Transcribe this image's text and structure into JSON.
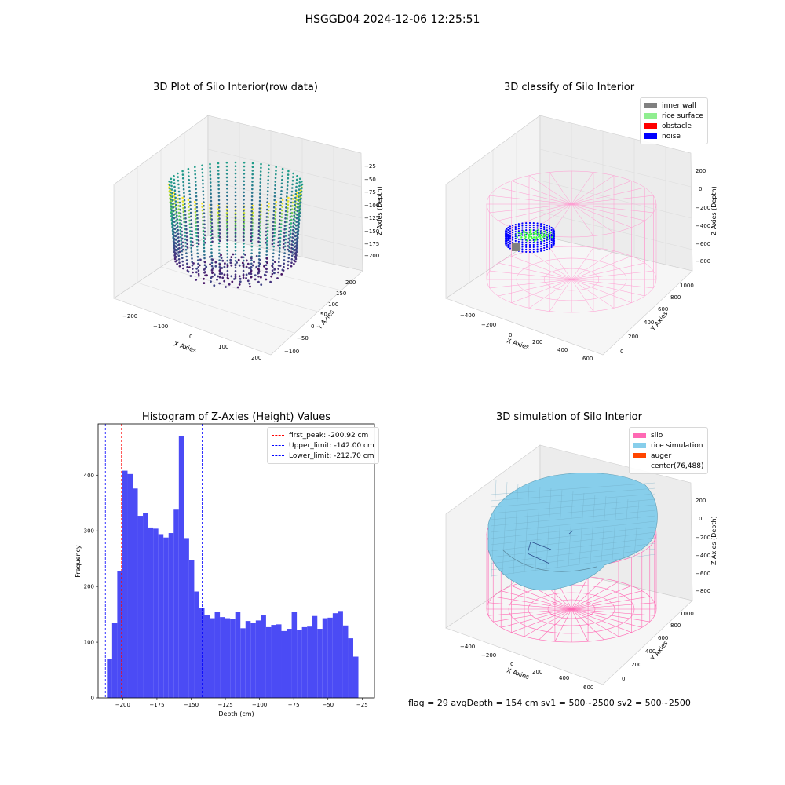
{
  "suptitle": "HSGGD04 2024-12-06 12:25:51",
  "chart_data": [
    {
      "type": "scatter",
      "title": "3D Plot of Silo Interior(row data)",
      "xlabel": "X Axies",
      "ylabel": "Y Axies",
      "zlabel": "Z Axies (Depth)",
      "x_ticks": [
        "−200",
        "−100",
        "0",
        "100",
        "200"
      ],
      "y_ticks": [
        "−100",
        "−50",
        "0",
        "50",
        "100",
        "150",
        "200"
      ],
      "z_ticks": [
        "−25",
        "−50",
        "−75",
        "−100",
        "−125",
        "−150",
        "−175",
        "−200"
      ],
      "colormap": "viridis"
    },
    {
      "type": "scatter",
      "title": "3D classify of Silo Interior",
      "xlabel": "X Axies",
      "ylabel": "Y Axies",
      "zlabel": "Z Axies (Depth)",
      "x_ticks": [
        "−400",
        "−200",
        "0",
        "200",
        "400",
        "600"
      ],
      "y_ticks": [
        "0",
        "200",
        "400",
        "600",
        "800",
        "1000"
      ],
      "z_ticks": [
        "200",
        "0",
        "−200",
        "−400",
        "−600",
        "−800"
      ],
      "legend": [
        {
          "label": "inner wall",
          "color": "#808080"
        },
        {
          "label": "rice surface",
          "color": "#90ee90"
        },
        {
          "label": "obstacle",
          "color": "#ff0000"
        },
        {
          "label": "noise",
          "color": "#0000ff"
        }
      ]
    },
    {
      "type": "bar",
      "title": "Histogram of Z-Axies (Height) Values",
      "xlabel": "Depth (cm)",
      "ylabel": "Frequency",
      "bar_color": "#4b4bf5",
      "bin_start": -211.5,
      "bin_width": 3.75,
      "values": [
        70,
        135,
        228,
        408,
        402,
        376,
        327,
        332,
        306,
        304,
        294,
        288,
        296,
        338,
        470,
        287,
        247,
        191,
        162,
        148,
        143,
        155,
        145,
        143,
        141,
        155,
        125,
        138,
        135,
        139,
        148,
        127,
        131,
        132,
        120,
        124,
        155,
        122,
        127,
        128,
        147,
        124,
        143,
        144,
        152,
        156,
        130,
        107,
        74
      ],
      "xlim": [
        -218,
        -16
      ],
      "ylim": [
        0,
        492
      ],
      "x_ticks": [
        -200,
        -175,
        -150,
        -125,
        -100,
        -75,
        -50,
        -25
      ],
      "x_tick_labels": [
        "−200",
        "−175",
        "−150",
        "−125",
        "−100",
        "−75",
        "−50",
        "−25"
      ],
      "y_ticks": [
        0,
        100,
        200,
        300,
        400
      ],
      "y_tick_labels": [
        "0",
        "100",
        "200",
        "300",
        "400"
      ],
      "vlines": [
        {
          "x": -200.92,
          "color": "#ff0000",
          "label": "first_peak: -200.92 cm"
        },
        {
          "x": -142.0,
          "color": "#0000ff",
          "label": "Upper_limit: -142.00 cm"
        },
        {
          "x": -212.7,
          "color": "#0000ff",
          "label": "Lower_limit: -212.70 cm"
        }
      ],
      "legend_position": "top-right"
    },
    {
      "type": "surface",
      "title": "3D simulation of Silo Interior",
      "xlabel": "X Axies",
      "ylabel": "Y Axies",
      "zlabel": "Z Axies (Depth)",
      "x_ticks": [
        "−400",
        "−200",
        "0",
        "200",
        "400",
        "600"
      ],
      "y_ticks": [
        "0",
        "200",
        "400",
        "600",
        "800",
        "1000"
      ],
      "z_ticks": [
        "200",
        "0",
        "−200",
        "−400",
        "−600",
        "−800"
      ],
      "legend": [
        {
          "label": "silo",
          "color": "#ff69b4"
        },
        {
          "label": "rice simulation",
          "color": "#87ceeb"
        },
        {
          "label": "auger",
          "color": "#ff4500"
        },
        {
          "label": "center(76,488)",
          "color": ""
        }
      ]
    }
  ],
  "footer": "flag = 29  avgDepth = 154 cm  sv1 = 500~2500  sv2 = 500~2500"
}
